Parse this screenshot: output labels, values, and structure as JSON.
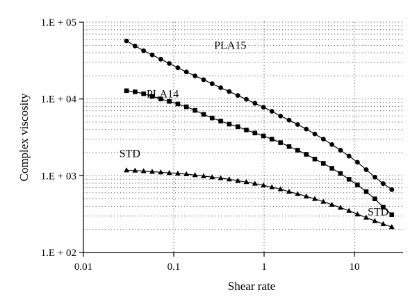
{
  "chart_data": {
    "type": "line",
    "title": "",
    "xlabel": "Shear rate",
    "ylabel": "Complex viscosity",
    "xscale": "log",
    "yscale": "log",
    "xlim": [
      0.01,
      30
    ],
    "ylim": [
      100,
      100000
    ],
    "x_ticks": [
      {
        "value": 0.01,
        "label": "0.01"
      },
      {
        "value": 0.1,
        "label": "0.1"
      },
      {
        "value": 1,
        "label": "1"
      },
      {
        "value": 10,
        "label": "10"
      }
    ],
    "y_ticks": [
      {
        "value": 100,
        "label": "1.E + 02"
      },
      {
        "value": 1000,
        "label": "1.E + 03"
      },
      {
        "value": 10000,
        "label": "1.E + 04"
      },
      {
        "value": 100000,
        "label": "1.E + 05"
      }
    ],
    "grid": "dotted",
    "series": [
      {
        "name": "PLA15",
        "marker": "circle",
        "x": [
          0.03,
          0.0373,
          0.0464,
          0.0577,
          0.0718,
          0.0893,
          0.111,
          0.138,
          0.172,
          0.214,
          0.266,
          0.331,
          0.411,
          0.512,
          0.636,
          0.791,
          0.984,
          1.22,
          1.52,
          1.89,
          2.35,
          2.93,
          3.64,
          4.53,
          5.63,
          7.0,
          8.71,
          10.8,
          13.5,
          16.8,
          20.8,
          25.9
        ],
        "values": [
          57000,
          49000,
          42500,
          37500,
          33000,
          29000,
          25500,
          22500,
          20000,
          17800,
          15800,
          14000,
          12500,
          11100,
          9900,
          8800,
          7800,
          6900,
          6000,
          5300,
          4650,
          4050,
          3500,
          3000,
          2550,
          2150,
          1800,
          1500,
          1200,
          960,
          790,
          660
        ]
      },
      {
        "name": "PLA14",
        "marker": "square",
        "x": [
          0.03,
          0.0373,
          0.0464,
          0.0577,
          0.0718,
          0.0893,
          0.111,
          0.138,
          0.172,
          0.214,
          0.266,
          0.331,
          0.411,
          0.512,
          0.636,
          0.791,
          0.984,
          1.22,
          1.52,
          1.89,
          2.35,
          2.93,
          3.64,
          4.53,
          5.63,
          7.0,
          8.71,
          10.8,
          13.5,
          16.8,
          20.8,
          25.9
        ],
        "values": [
          12800,
          12400,
          11700,
          10800,
          10000,
          9300,
          8600,
          7900,
          7100,
          6300,
          5650,
          5150,
          4700,
          4350,
          3950,
          3600,
          3300,
          3000,
          2700,
          2400,
          2150,
          1900,
          1650,
          1450,
          1250,
          1070,
          900,
          760,
          620,
          500,
          390,
          310
        ]
      },
      {
        "name": "STD",
        "marker": "triangle",
        "x": [
          0.03,
          0.0373,
          0.0464,
          0.0577,
          0.0718,
          0.0893,
          0.111,
          0.138,
          0.172,
          0.214,
          0.266,
          0.331,
          0.411,
          0.512,
          0.636,
          0.791,
          0.984,
          1.22,
          1.52,
          1.89,
          2.35,
          2.93,
          3.64,
          4.53,
          5.63,
          7.0,
          8.71,
          10.8,
          13.5,
          16.8,
          20.8,
          25.9
        ],
        "values": [
          1180,
          1170,
          1150,
          1130,
          1110,
          1090,
          1070,
          1050,
          1020,
          990,
          960,
          930,
          900,
          860,
          830,
          790,
          750,
          710,
          670,
          620,
          580,
          540,
          500,
          460,
          420,
          385,
          350,
          315,
          285,
          258,
          235,
          215
        ]
      }
    ],
    "annotations": [
      {
        "text": "PLA15",
        "x": 0.28,
        "y": 45000
      },
      {
        "text": "PLA14",
        "x": 0.05,
        "y": 10500
      },
      {
        "text": "STD",
        "x": 0.025,
        "y": 1750
      },
      {
        "text": "STD",
        "x": 14,
        "y": 305
      }
    ]
  }
}
